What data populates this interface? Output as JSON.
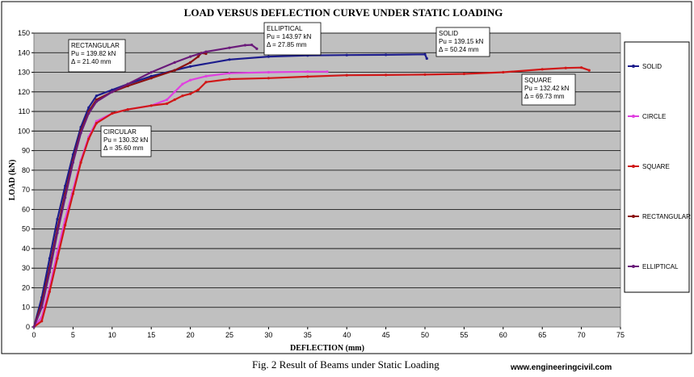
{
  "caption": "Fig. 2 Result of  Beams under Static Loading",
  "website": "www.engineeringcivil.com",
  "chart_data": {
    "type": "line",
    "title": "LOAD VERSUS DEFLECTION CURVE UNDER STATIC LOADING",
    "xlabel": "DEFLECTION (mm)",
    "ylabel": "LOAD (kN)",
    "xlim": [
      0,
      75
    ],
    "ylim": [
      0,
      150
    ],
    "xticks": [
      0,
      5,
      10,
      15,
      20,
      25,
      30,
      35,
      40,
      45,
      50,
      55,
      60,
      65,
      70,
      75
    ],
    "yticks": [
      0,
      10,
      20,
      30,
      40,
      50,
      60,
      70,
      80,
      90,
      100,
      110,
      120,
      130,
      140,
      150
    ],
    "grid": "horizontal",
    "background": "#c0c0c0",
    "legend_position": "right",
    "series": [
      {
        "name": "SOLID",
        "color": "#1c1c8c",
        "x": [
          0,
          1,
          2,
          3,
          4,
          5,
          6,
          7,
          8,
          10,
          12,
          15,
          18,
          20,
          25,
          30,
          35,
          40,
          45,
          50,
          50.24
        ],
        "y": [
          0,
          15,
          35,
          55,
          72,
          88,
          102,
          112,
          118,
          121,
          124,
          128,
          131,
          133,
          136.5,
          138,
          138.6,
          138.8,
          138.9,
          139.15,
          137
        ]
      },
      {
        "name": "CIRCLE",
        "color": "#e040e0",
        "x": [
          0,
          1,
          2,
          3,
          4,
          5,
          6,
          7,
          8,
          10,
          12,
          15,
          17,
          18,
          19,
          20,
          22,
          25,
          30,
          35,
          37.5
        ],
        "y": [
          0,
          5,
          20,
          38,
          55,
          70,
          85,
          97,
          105,
          109,
          111,
          113,
          116,
          120,
          124,
          126,
          128,
          129.5,
          130,
          130.32,
          130.3
        ]
      },
      {
        "name": "SQUARE",
        "color": "#d01818",
        "x": [
          0,
          1,
          2,
          3,
          4,
          5,
          6,
          7,
          8,
          10,
          12,
          15,
          17,
          18,
          19,
          20,
          21,
          22,
          25,
          30,
          35,
          40,
          45,
          50,
          55,
          60,
          65,
          68,
          70,
          71
        ],
        "y": [
          0,
          3,
          18,
          35,
          52,
          68,
          84,
          96,
          104,
          109,
          111,
          113,
          114,
          116,
          118,
          119,
          121,
          125,
          126.5,
          127,
          127.8,
          128.5,
          128.6,
          128.8,
          129.2,
          130,
          131.5,
          132.2,
          132.42,
          131
        ]
      },
      {
        "name": "RECTANGULAR",
        "color": "#8c1010",
        "x": [
          0,
          1,
          2,
          3,
          4,
          5,
          6,
          7,
          8,
          10,
          12,
          15,
          18,
          20,
          21,
          21.4,
          22
        ],
        "y": [
          0,
          12,
          30,
          50,
          68,
          85,
          100,
          110,
          116,
          120,
          123,
          127,
          131,
          135,
          138,
          139.82,
          139.5
        ]
      },
      {
        "name": "ELLIPTICAL",
        "color": "#6a1a7a",
        "x": [
          0,
          1,
          2,
          3,
          4,
          5,
          6,
          7,
          8,
          10,
          12,
          15,
          18,
          20,
          22,
          25,
          27,
          27.85,
          28.5
        ],
        "y": [
          0,
          10,
          28,
          48,
          66,
          84,
          99,
          109,
          115,
          120,
          124,
          130,
          135,
          138,
          140.5,
          142.5,
          143.8,
          143.97,
          142
        ]
      }
    ],
    "annotations": [
      {
        "series": "RECTANGULAR",
        "lines": [
          "RECTANGULAR",
          "Pu = 139.82 kN",
          "Δ = 21.40 mm"
        ]
      },
      {
        "series": "ELLIPTICAL",
        "lines": [
          "ELLIPTICAL",
          "Pu = 143.97 kN",
          "Δ = 27.85 mm"
        ]
      },
      {
        "series": "SOLID",
        "lines": [
          "SOLID",
          "Pu = 139.15 kN",
          "Δ = 50.24 mm"
        ]
      },
      {
        "series": "SQUARE",
        "lines": [
          "SQUARE",
          "Pu = 132.42 kN",
          "Δ = 69.73 mm"
        ]
      },
      {
        "series": "CIRCLE",
        "lines": [
          "CIRCULAR",
          "Pu = 130.32 kN",
          "Δ = 35.60 mm"
        ]
      }
    ],
    "legend": [
      "SOLID",
      "CIRCLE",
      "SQUARE",
      "RECTANGULAR",
      "ELLIPTICAL"
    ]
  }
}
